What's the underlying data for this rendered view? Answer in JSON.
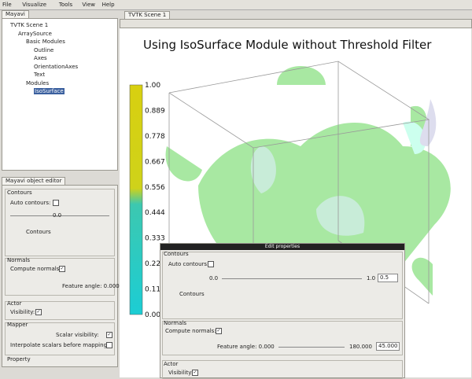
{
  "menu": [
    "File",
    "Visualize",
    "Tools",
    "View",
    "Help"
  ],
  "left_tab": "Mayavi",
  "tree": [
    "TVTK Scene 1",
    "ArraySource",
    "Basic Modules",
    "Outline",
    "Axes",
    "OrientationAxes",
    "Text",
    "Modules",
    "IsoSurface"
  ],
  "editor": {
    "title": "Mayavi object editor",
    "contours": "Contours",
    "auto_contours": "Auto contours:",
    "contour_value": "0.0",
    "contours_label": "Contours",
    "normals": "Normals",
    "compute_normals": "Compute normals:",
    "feature_angle": "Feature angle: 0.000",
    "actor": "Actor",
    "visibility": "Visibility:",
    "mapper": "Mapper",
    "scalar_visibility": "Scalar visibility:",
    "interpolate": "Interpolate scalars before mapping:",
    "property": "Property"
  },
  "scene": {
    "tab": "TVTK Scene 1",
    "title": "Using IsoSurface Module without Threshold Filter",
    "colorbar_labels": [
      "1.00",
      "0.889",
      "0.778",
      "0.667",
      "0.556",
      "0.444",
      "0.333",
      "0.222",
      "0.111",
      "0.00"
    ]
  },
  "popup": {
    "title": "Edit properties",
    "contours": "Contours",
    "auto_contours": "Auto contours:",
    "min": "0.0",
    "max": "1.0",
    "value": "0.5",
    "contours_label": "Contours",
    "normals": "Normals",
    "compute_normals": "Compute normals:",
    "feature_angle": "Feature angle: 0.000",
    "angle_max": "180.000",
    "angle_value": "45.000",
    "actor": "Actor",
    "visibility": "Visibility:"
  }
}
